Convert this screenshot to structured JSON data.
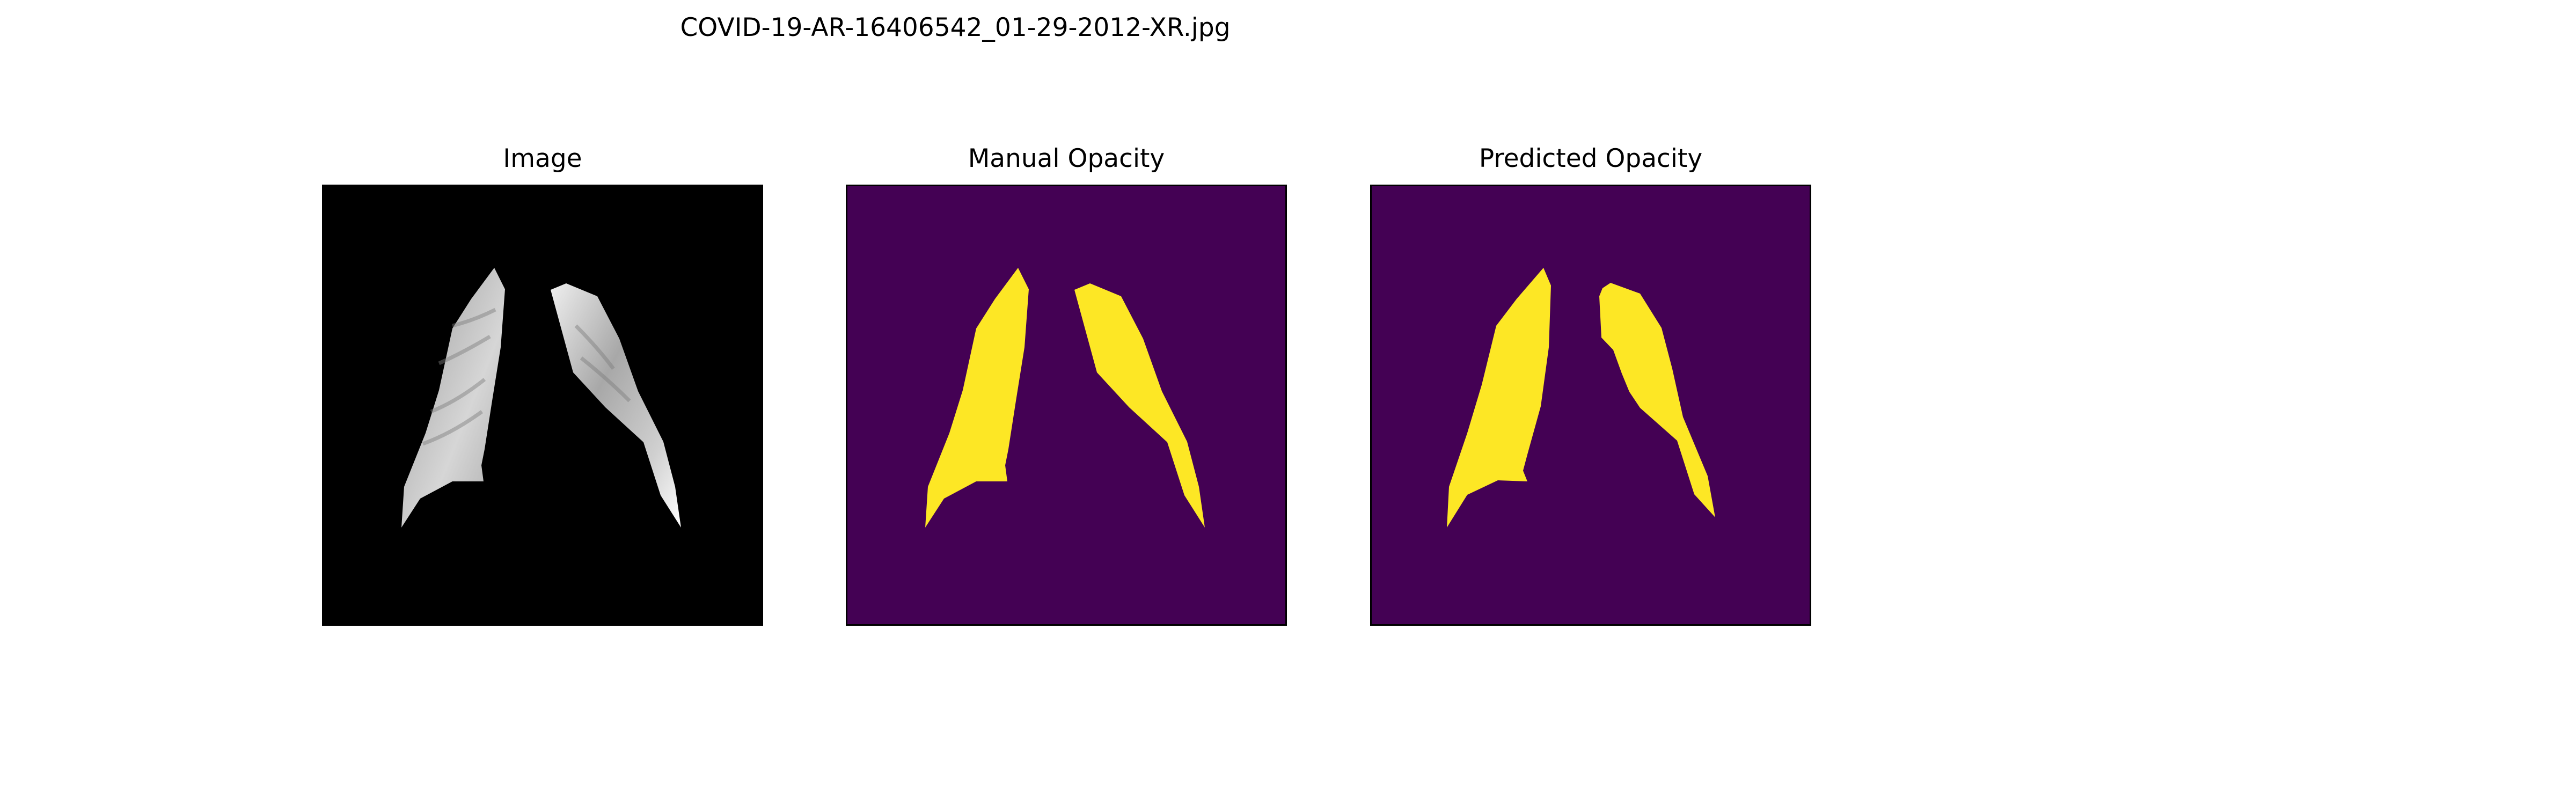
{
  "figure": {
    "title": "COVID-19-AR-16406542_01-29-2012-XR.jpg"
  },
  "panels": [
    {
      "title": "Image",
      "background": "#000000",
      "style": "grayscale-xray-lungs"
    },
    {
      "title": "Manual Opacity",
      "background": "#440154",
      "mask_color": "#fde725"
    },
    {
      "title": "Predicted Opacity",
      "background": "#440154",
      "mask_color": "#fde725"
    }
  ]
}
